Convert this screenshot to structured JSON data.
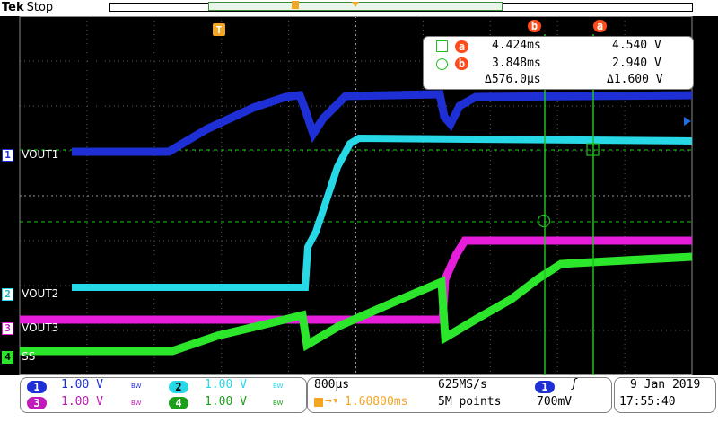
{
  "header": {
    "brand": "Tek",
    "status": "Stop",
    "trigger_marker": "T"
  },
  "colors": {
    "ch1": "#1f2fd6",
    "ch2": "#27d8e6",
    "ch3": "#e61edc",
    "ch4": "#2ce62c",
    "cursor": "#20c020",
    "grid": "#8a8a8a",
    "readout_red": "#ff4a1a"
  },
  "traces": [
    {
      "id": "ch1",
      "number": "1",
      "label": "VOUT1"
    },
    {
      "id": "ch2",
      "number": "2",
      "label": "VOUT2"
    },
    {
      "id": "ch3",
      "number": "3",
      "label": "VOUT3"
    },
    {
      "id": "ch4",
      "number": "4",
      "label": "SS"
    }
  ],
  "cursors": {
    "label_a": "a",
    "label_b": "b",
    "row_a": {
      "time": "4.424ms",
      "volt": "4.540 V"
    },
    "row_b": {
      "time": "3.848ms",
      "volt": "2.940 V"
    },
    "delta": {
      "time": "Δ576.0µs",
      "volt": "Δ1.600 V"
    }
  },
  "channels": [
    {
      "number": "1",
      "scale": "1.00 V",
      "bw": "BW"
    },
    {
      "number": "2",
      "scale": "1.00 V",
      "bw": "BW"
    },
    {
      "number": "3",
      "scale": "1.00 V",
      "bw": "BW"
    },
    {
      "number": "4",
      "scale": "1.00 V",
      "bw": "BW"
    }
  ],
  "timebase": {
    "scale": "800µs",
    "delay": "1.60800ms",
    "sample_rate": "625MS/s",
    "record_length": "5M points"
  },
  "trigger": {
    "source": "1",
    "slope": "ʃ",
    "level": "700mV"
  },
  "datetime": {
    "date": "9 Jan  2019",
    "time": "17:55:40"
  }
}
